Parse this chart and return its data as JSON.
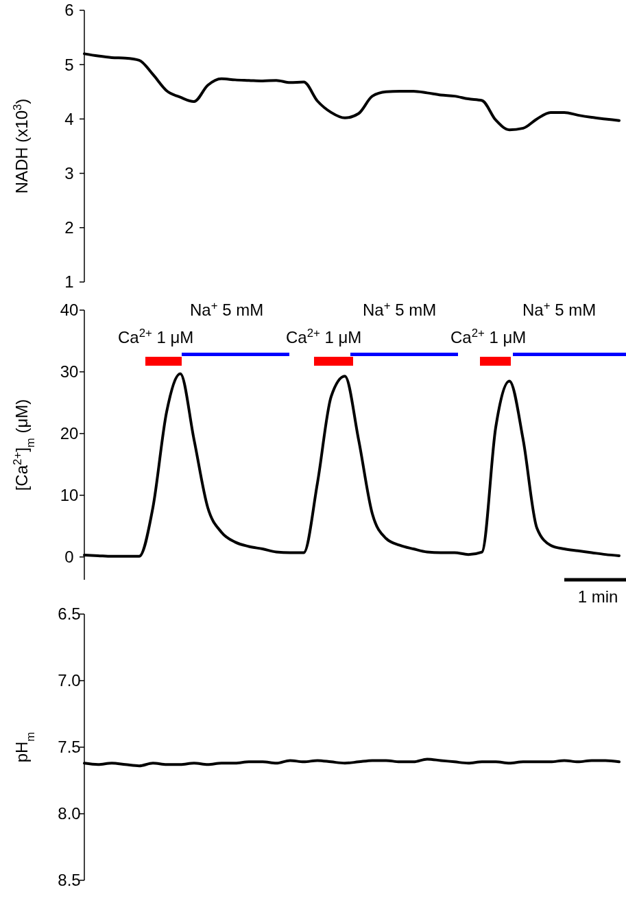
{
  "chart_data": [
    {
      "type": "line",
      "ylabel": "NADH (x10$^{3}$)",
      "tick_labels": "y",
      "ylim": [
        1,
        6
      ],
      "yticks": [
        1,
        2,
        3,
        4,
        5,
        6
      ],
      "categories": [
        null,
        null,
        null,
        null,
        null,
        null,
        null,
        null,
        null,
        null,
        null,
        null,
        null,
        null,
        null,
        null,
        null,
        null,
        null,
        null,
        null,
        null,
        null,
        null,
        null,
        null,
        null,
        null,
        null,
        null,
        null,
        null,
        null,
        null,
        null,
        null,
        null,
        null,
        null,
        null
      ],
      "series": [
        {
          "color": "#000000",
          "values": [
            5.2,
            5.16,
            5.13,
            5.12,
            5.08,
            4.82,
            4.52,
            4.4,
            4.32,
            4.62,
            4.74,
            4.72,
            4.71,
            4.7,
            4.71,
            4.67,
            4.68,
            4.33,
            4.12,
            4.02,
            4.1,
            4.42,
            4.5,
            4.51,
            4.51,
            4.48,
            4.44,
            4.42,
            4.37,
            4.34,
            3.98,
            3.8,
            3.83,
            4.0,
            4.12,
            4.12,
            4.07,
            4.03,
            4.0,
            3.97
          ]
        }
      ]
    },
    {
      "type": "line",
      "ylabel": "[Ca$^{2+}$]$_{m}$ (μM)",
      "tick_labels": "y",
      "ylim": [
        -3.7,
        40
      ],
      "yticks": [
        0,
        10,
        20,
        30,
        40
      ],
      "categories": [
        null,
        null,
        null,
        null,
        null,
        null,
        null,
        null,
        null,
        null,
        null,
        null,
        null,
        null,
        null,
        null,
        null,
        null,
        null,
        null,
        null,
        null,
        null,
        null,
        null,
        null,
        null,
        null,
        null,
        null,
        null,
        null,
        null,
        null,
        null,
        null,
        null,
        null,
        null,
        null
      ],
      "series": [
        {
          "color": "#000000",
          "values": [
            0.3,
            0.2,
            0.1,
            0.1,
            0.1,
            8,
            23.5,
            29.7,
            19,
            8,
            4,
            2.4,
            1.7,
            1.3,
            0.8,
            0.7,
            0.7,
            12,
            26,
            29.3,
            19,
            7,
            3,
            1.9,
            1.3,
            0.8,
            0.7,
            0.7,
            0.4,
            0.8,
            21,
            28.5,
            19,
            4.7,
            1.9,
            1.3,
            1,
            0.7,
            0.4,
            0.2
          ]
        }
      ],
      "annotations": [
        "Ca$^{2+}$ 1 μM",
        "Na$^{+}$ 5 mM",
        "Ca$^{2+}$ 1 μM",
        "Na$^{+}$ 5 mM",
        "Ca$^{2+}$ 1 μM",
        "Na$^{+}$ 5 mM",
        "1 min"
      ]
    },
    {
      "type": "line",
      "ylabel": "pH$_{m}$",
      "tick_labels": "y",
      "ylim": [
        8.5,
        6.5
      ],
      "yticks": [
        6.5,
        {
          "value": 7,
          "label": "7.0"
        },
        7.5,
        {
          "value": 8,
          "label": "8.0"
        },
        8.5
      ],
      "categories": [
        null,
        null,
        null,
        null,
        null,
        null,
        null,
        null,
        null,
        null,
        null,
        null,
        null,
        null,
        null,
        null,
        null,
        null,
        null,
        null,
        null,
        null,
        null,
        null,
        null,
        null,
        null,
        null,
        null,
        null,
        null,
        null,
        null,
        null,
        null,
        null,
        null,
        null,
        null,
        null
      ],
      "series": [
        {
          "color": "#000000",
          "values": [
            7.62,
            7.63,
            7.62,
            7.63,
            7.64,
            7.62,
            7.63,
            7.63,
            7.62,
            7.63,
            7.62,
            7.62,
            7.61,
            7.61,
            7.62,
            7.6,
            7.61,
            7.6,
            7.61,
            7.62,
            7.61,
            7.6,
            7.6,
            7.61,
            7.61,
            7.59,
            7.6,
            7.61,
            7.62,
            7.61,
            7.61,
            7.62,
            7.61,
            7.61,
            7.61,
            7.6,
            7.61,
            7.6,
            7.6,
            7.61
          ]
        }
      ]
    }
  ]
}
